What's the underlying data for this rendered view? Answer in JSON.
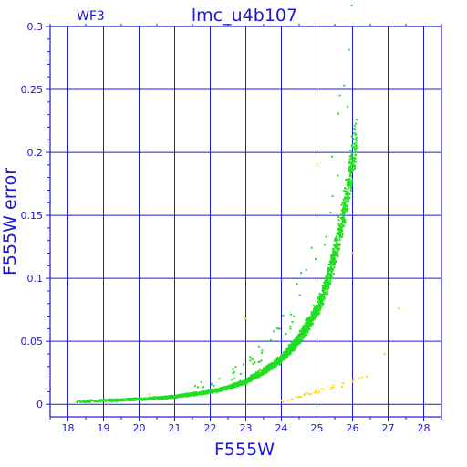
{
  "chart_data": {
    "type": "scatter",
    "title": "lmc_u4b107",
    "subtitle": "WF3",
    "xlabel": "F555W",
    "ylabel": "F555W error",
    "xlim": [
      17.5,
      28.5
    ],
    "ylim": [
      -0.01,
      0.3
    ],
    "x_ticks": [
      18,
      19,
      20,
      21,
      22,
      23,
      24,
      25,
      26,
      27,
      28
    ],
    "y_ticks": [
      0,
      0.05,
      0.1,
      0.15,
      0.2,
      0.25,
      0.3
    ],
    "y_tick_labels": [
      "0",
      "0.05",
      "0.1",
      "0.15",
      "0.2",
      "0.25",
      "0.3"
    ],
    "grid": true,
    "colors": {
      "axes": "#1a1ad6",
      "main_series": "#22dd22",
      "secondary_series": "#ffd700"
    },
    "series": [
      {
        "color": "#22dd22",
        "trend_x": [
          18.2,
          19.0,
          20.0,
          21.0,
          22.0,
          22.5,
          23.0,
          23.5,
          24.0,
          24.5,
          25.0,
          25.3,
          25.6,
          25.9,
          26.1
        ],
        "trend_y": [
          0.002,
          0.003,
          0.004,
          0.006,
          0.01,
          0.013,
          0.018,
          0.026,
          0.036,
          0.052,
          0.075,
          0.097,
          0.13,
          0.175,
          0.212
        ]
      },
      {
        "color": "#ffd700",
        "points": [
          [
            20.3,
            0.008
          ],
          [
            22.1,
            0.012
          ],
          [
            23.0,
            0.068
          ],
          [
            23.4,
            0.026
          ],
          [
            24.0,
            0.003
          ],
          [
            24.5,
            0.006
          ],
          [
            24.8,
            0.008
          ],
          [
            25.0,
            0.01
          ],
          [
            25.4,
            0.012
          ],
          [
            25.7,
            0.014
          ],
          [
            26.0,
            0.018
          ],
          [
            26.4,
            0.022
          ],
          [
            27.3,
            0.076
          ],
          [
            26.9,
            0.04
          ],
          [
            25.0,
            0.19
          ],
          [
            26.0,
            0.12
          ]
        ]
      }
    ]
  }
}
